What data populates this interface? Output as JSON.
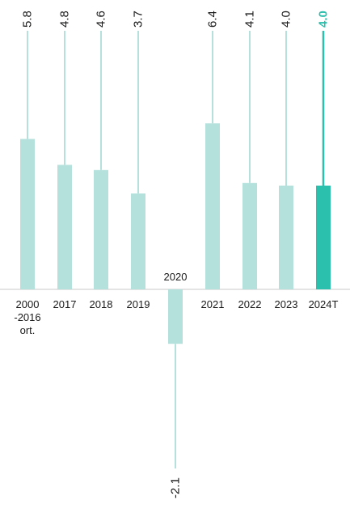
{
  "chart_data": {
    "type": "bar",
    "categories": [
      "2000\n-2016\nort.",
      "2017",
      "2018",
      "2019",
      "2020",
      "2021",
      "2022",
      "2023",
      "2024T"
    ],
    "values": [
      5.8,
      4.8,
      4.6,
      3.7,
      -2.1,
      6.4,
      4.1,
      4.0,
      4.0
    ],
    "value_labels": [
      "5.8",
      "4.8",
      "4.6",
      "3.7",
      "-2.1",
      "6.4",
      "4.1",
      "4.0",
      "4.0"
    ],
    "highlight_index": 8,
    "title": "",
    "xlabel": "",
    "ylabel": "",
    "ylim": [
      -2.1,
      6.4
    ],
    "grid": false,
    "legend": "none"
  },
  "colors": {
    "bar": "#b5e1dc",
    "highlight": "#2bbfad",
    "axis": "#c8c8c8",
    "text": "#1a1a1a"
  }
}
